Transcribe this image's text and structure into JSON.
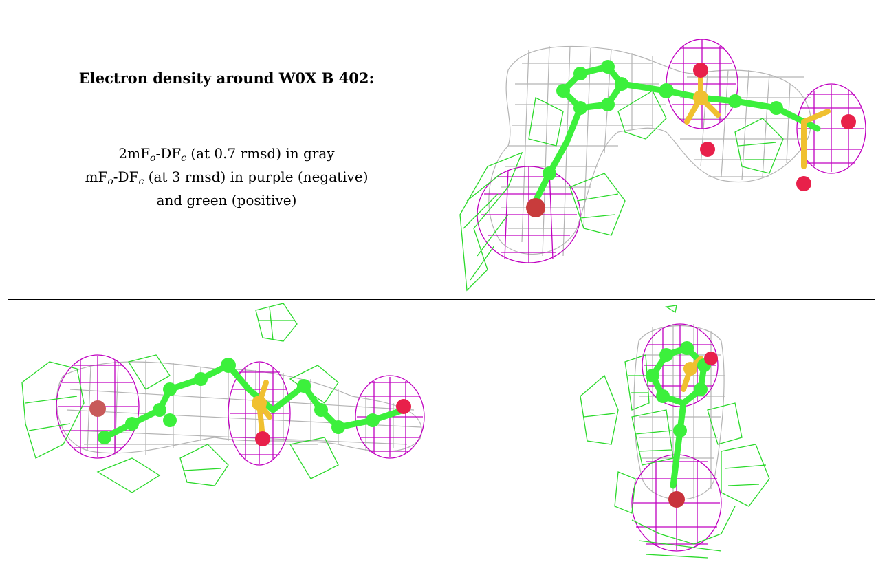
{
  "legend": {
    "title": "Electron density around W0X B 402:",
    "line1_a": "2mF",
    "line1_sub1": "o",
    "line1_b": "-DF",
    "line1_sub2": "c",
    "line1_c": " (at 0.7 rmsd) in gray",
    "line2_a": "mF",
    "line2_sub1": "o",
    "line2_b": "-DF",
    "line2_sub2": "c",
    "line2_c": " (at 3 rmsd) in purple (negative)",
    "line3": "and green (positive)"
  },
  "colors": {
    "map_2fofc": "#b0b0b0",
    "map_negative": "#c000c0",
    "map_positive": "#2bd92b",
    "carbon": "#3cf03c",
    "oxygen": "#e8204a",
    "sulfur": "#f0c030"
  },
  "panels": [
    "view-top-right",
    "view-bottom-left",
    "view-bottom-right"
  ]
}
